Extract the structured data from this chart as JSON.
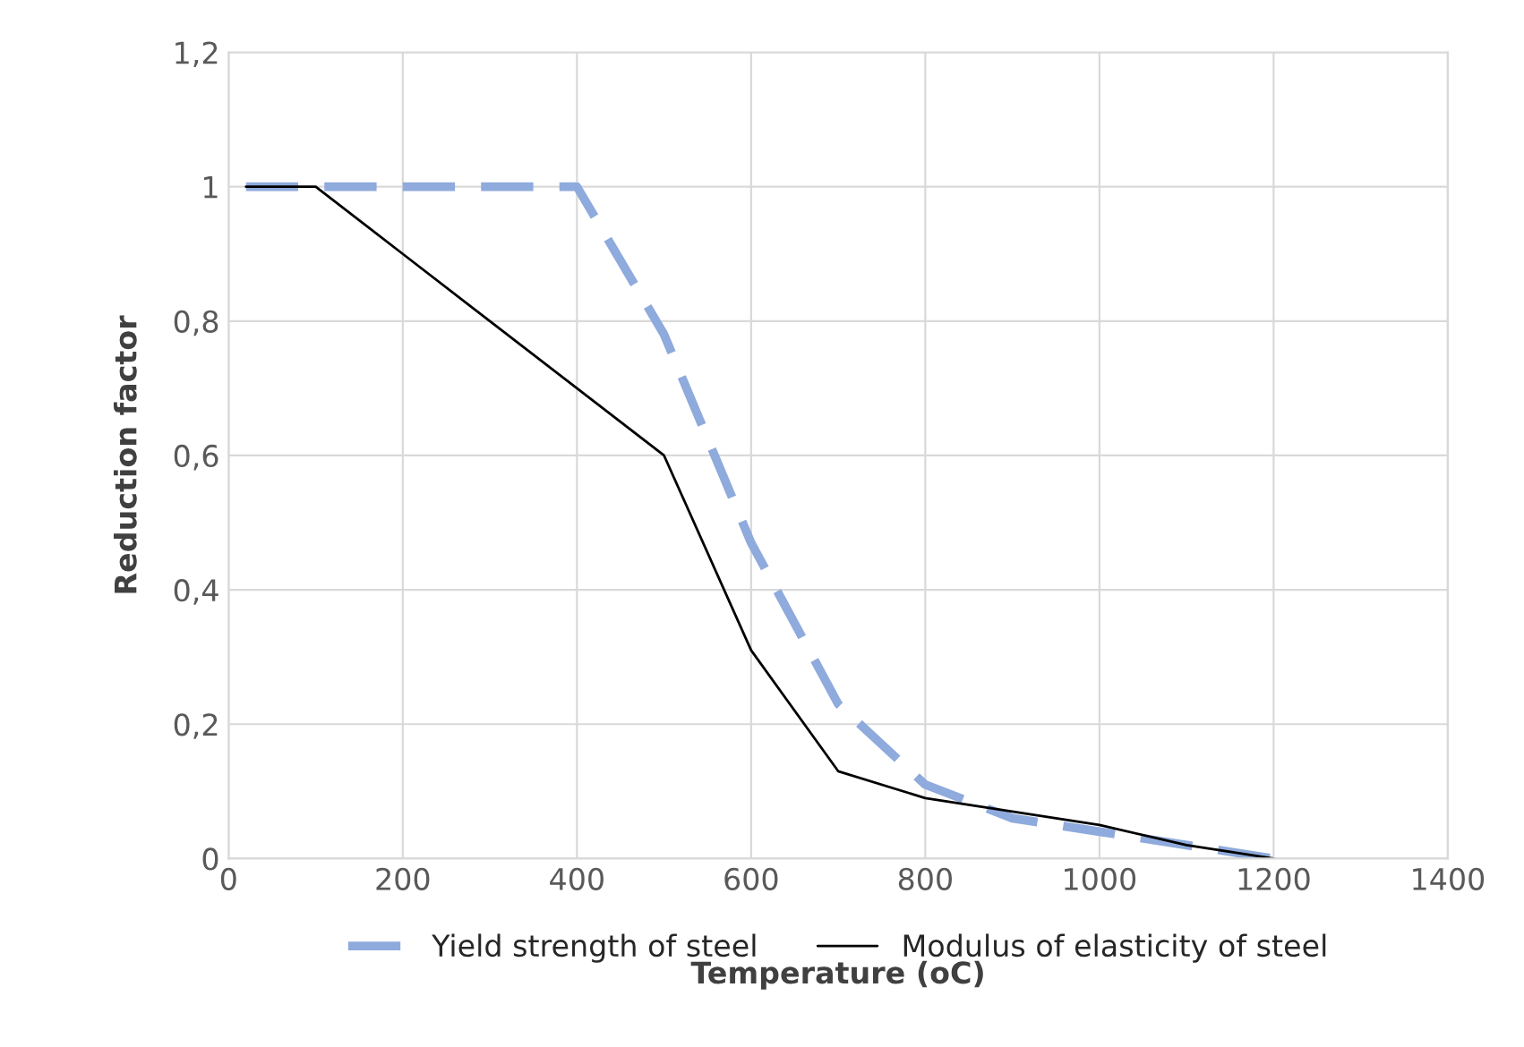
{
  "chart_data": {
    "type": "line",
    "xlabel": "Temperature (oC)",
    "ylabel": "Reduction factor",
    "xlim": [
      0,
      1400
    ],
    "xticks": [
      0,
      200,
      400,
      600,
      800,
      1000,
      1200,
      1400
    ],
    "ylim": [
      0,
      1.2
    ],
    "yticks": [
      0,
      {
        "value": 0.2,
        "label": "0,2"
      },
      {
        "value": 0.4,
        "label": "0,4"
      },
      {
        "value": 0.6,
        "label": "0,6"
      },
      {
        "value": 0.8,
        "label": "0,8"
      },
      1,
      {
        "value": 1.2,
        "label": "1,2"
      }
    ],
    "grid": true,
    "legend": "bottom",
    "series": [
      {
        "name": "Yield strength of steel",
        "color": "#8faadc",
        "line_style": "dashed",
        "x": [
          20,
          100,
          200,
          300,
          400,
          500,
          600,
          700,
          800,
          900,
          1000,
          1100,
          1200
        ],
        "values": [
          1,
          1,
          1,
          1,
          1,
          0.78,
          0.47,
          0.23,
          0.11,
          0.06,
          0.04,
          0.02,
          0
        ]
      },
      {
        "name": "Modulus of elasticity of steel",
        "color": "#000000",
        "line_style": "solid",
        "x": [
          20,
          100,
          200,
          300,
          400,
          500,
          600,
          700,
          800,
          900,
          1000,
          1100,
          1200
        ],
        "values": [
          1,
          1,
          0.9,
          0.8,
          0.7,
          0.6,
          0.31,
          0.13,
          0.09,
          0.07,
          0.05,
          0.02,
          0
        ]
      }
    ]
  }
}
